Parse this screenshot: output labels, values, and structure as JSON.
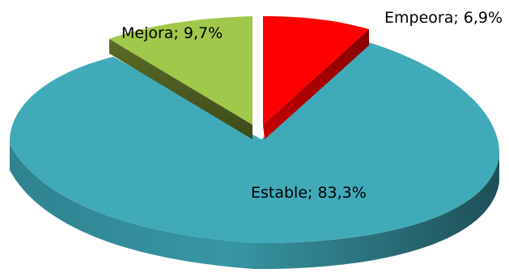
{
  "chart_data": {
    "type": "pie",
    "style": "3d-exploded",
    "slices": [
      {
        "label": "Empeora; 6,9%",
        "category": "Empeora",
        "value": 6.9,
        "color": "#ff0000",
        "side_color": "#b30000"
      },
      {
        "label": "Estable; 83,3%",
        "category": "Estable",
        "value": 83.3,
        "color": "#41aab9",
        "side_color": "#2e7f8c"
      },
      {
        "label": "Mejora; 9,7%",
        "category": "Mejora",
        "value": 9.7,
        "color": "#a0c84a",
        "side_color": "#4e5e22"
      }
    ],
    "legend": "none"
  }
}
